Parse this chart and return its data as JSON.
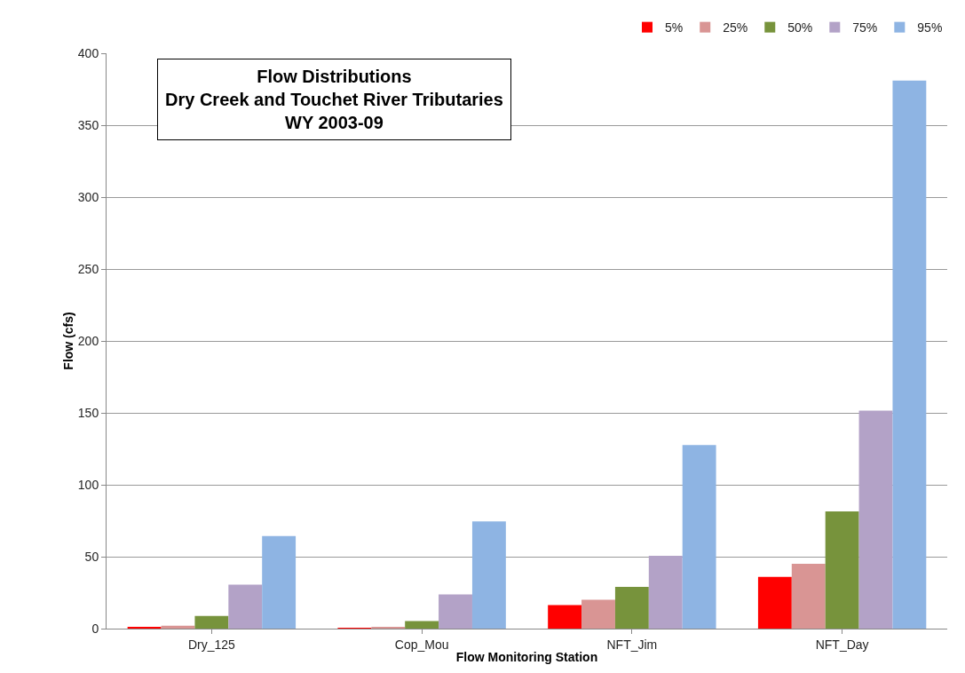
{
  "chart_data": {
    "type": "bar",
    "title": "Flow Distributions\nDry Creek and Touchet River Tributaries\nWY 2003-09",
    "xlabel": "Flow Monitoring Station",
    "ylabel": "Flow (cfs)",
    "categories": [
      "Dry_125",
      "Cop_Mou",
      "NFT_Jim",
      "NFT_Day"
    ],
    "series": [
      {
        "name": "5%",
        "color": "#ff0000",
        "values": [
          0.8,
          0.6,
          16.4,
          36
        ]
      },
      {
        "name": "25%",
        "color": "#d99594",
        "values": [
          2,
          1.2,
          20,
          45
        ]
      },
      {
        "name": "50%",
        "color": "#77933c",
        "values": [
          8.8,
          5.2,
          29,
          81.5
        ]
      },
      {
        "name": "75%",
        "color": "#b3a2c7",
        "values": [
          30.5,
          23.8,
          50.6,
          151.6
        ]
      },
      {
        "name": "95%",
        "color": "#8eb4e3",
        "values": [
          64.3,
          74.6,
          127.6,
          381
        ]
      }
    ],
    "ylim": [
      0,
      400
    ],
    "yticks": [
      0,
      50,
      100,
      150,
      200,
      250,
      300,
      350,
      400
    ],
    "grid": "y",
    "legend": "top right"
  }
}
